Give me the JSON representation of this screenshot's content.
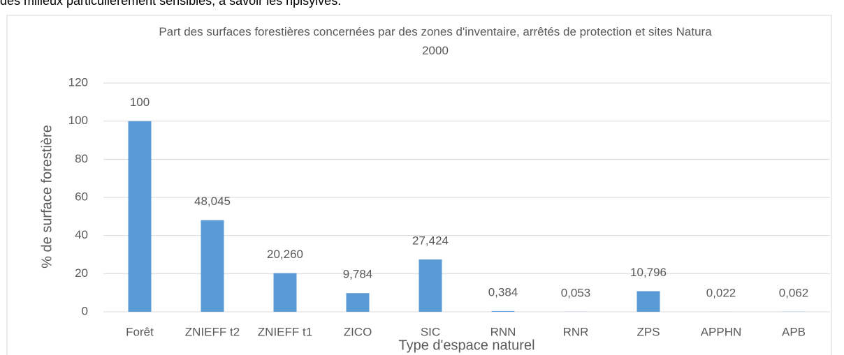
{
  "paragraph": "des milieux particulièrement sensibles, à savoir les ripisylves.",
  "chart_data": {
    "type": "bar",
    "title": "Part des surfaces forestières concernées par des zones d'inventaire, arrêtés de protection et sites Natura 2000",
    "x_label": "Type d'espace naturel",
    "y_label": "% de surface forestière",
    "categories": [
      "Forêt",
      "ZNIEFF t2",
      "ZNIEFF t1",
      "ZICO",
      "SIC",
      "RNN",
      "RNR",
      "ZPS",
      "APPHN",
      "APB"
    ],
    "values": [
      100,
      48.045,
      20.26,
      9.784,
      27.424,
      0.384,
      0.053,
      10.796,
      0.022,
      0.062
    ],
    "value_labels": [
      "100",
      "48,045",
      "20,260",
      "9,784",
      "27,424",
      "0,384",
      "0,053",
      "10,796",
      "0,022",
      "0,062"
    ],
    "color": "#5b9bd5",
    "ylim": [
      0,
      120
    ],
    "yticks": [
      0,
      20,
      40,
      60,
      80,
      100,
      120
    ],
    "grid": true
  }
}
